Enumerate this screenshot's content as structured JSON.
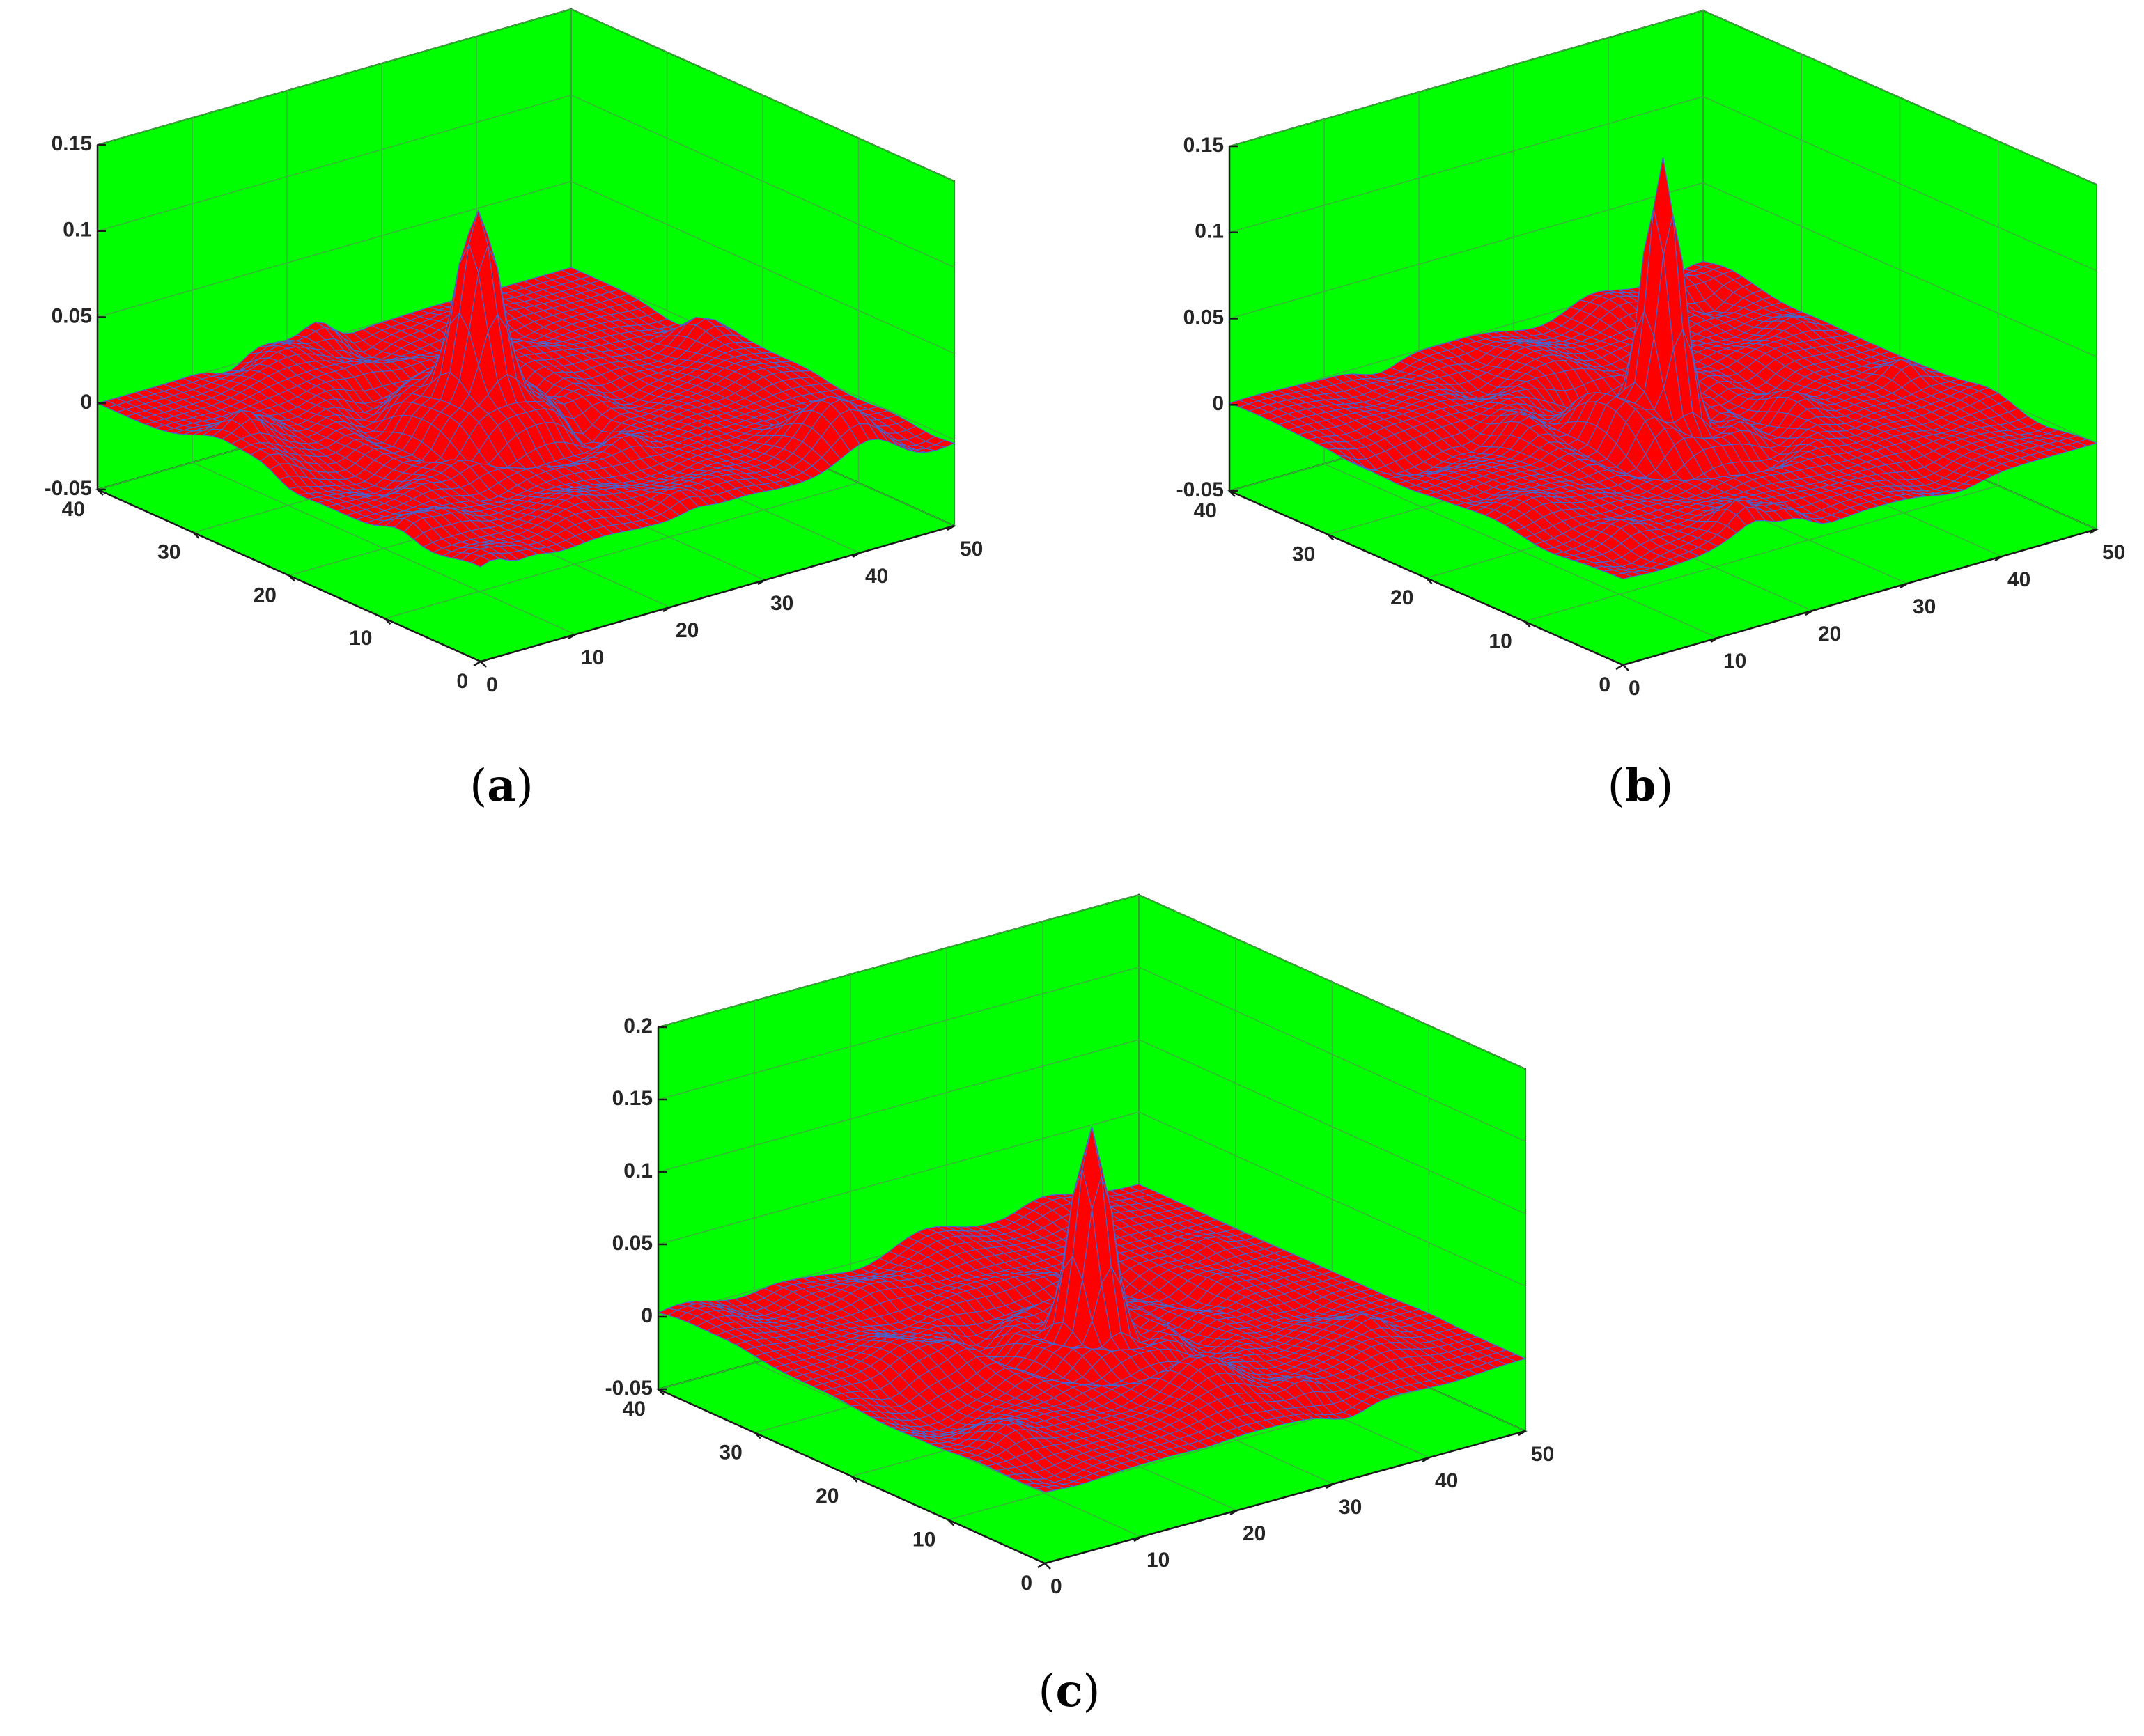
{
  "colors": {
    "pane": "#00ff00",
    "surface": "#ff0000",
    "wireframe": "#4a63c8",
    "axis": "#1a1a1a",
    "grid": "#39b339"
  },
  "chart_data": [
    {
      "type": "surface",
      "panel": "a",
      "caption": {
        "open": "(",
        "letter": "a",
        "close": ")"
      },
      "title": "",
      "xlabel": "",
      "ylabel": "",
      "zlabel": "",
      "xlim": [
        0,
        50
      ],
      "ylim": [
        0,
        40
      ],
      "zlim": [
        -0.05,
        0.15
      ],
      "xticks": [
        "0",
        "10",
        "20",
        "30",
        "40",
        "50"
      ],
      "yticks": [
        "0",
        "10",
        "20",
        "30",
        "40"
      ],
      "zticks": [
        "-0.05",
        "0",
        "0.05",
        "0.1",
        "0.15"
      ],
      "grid": true,
      "peak": {
        "x": 22,
        "y": 22,
        "z": 0.105,
        "width": 2.2
      },
      "noise_amplitude": 0.012,
      "seed": 11
    },
    {
      "type": "surface",
      "panel": "b",
      "caption": {
        "open": "(",
        "letter": "b",
        "close": ")"
      },
      "title": "",
      "xlabel": "",
      "ylabel": "",
      "zlabel": "",
      "xlim": [
        0,
        50
      ],
      "ylim": [
        0,
        40
      ],
      "zlim": [
        -0.05,
        0.15
      ],
      "xticks": [
        "0",
        "10",
        "20",
        "30",
        "40",
        "50"
      ],
      "yticks": [
        "0",
        "10",
        "20",
        "30",
        "40"
      ],
      "zticks": [
        "-0.05",
        "0",
        "0.05",
        "0.1",
        "0.15"
      ],
      "grid": true,
      "peak": {
        "x": 25,
        "y": 20,
        "z": 0.14,
        "width": 1.6
      },
      "noise_amplitude": 0.01,
      "seed": 23
    },
    {
      "type": "surface",
      "panel": "c",
      "caption": {
        "open": "(",
        "letter": "c",
        "close": ")"
      },
      "title": "",
      "xlabel": "",
      "ylabel": "",
      "zlabel": "",
      "xlim": [
        0,
        50
      ],
      "ylim": [
        0,
        40
      ],
      "zlim": [
        -0.05,
        0.2
      ],
      "xticks": [
        "0",
        "10",
        "20",
        "30",
        "40",
        "50"
      ],
      "yticks": [
        "0",
        "10",
        "20",
        "30",
        "40"
      ],
      "zticks": [
        "-0.05",
        "0",
        "0.05",
        "0.1",
        "0.15",
        "0.2"
      ],
      "grid": true,
      "peak": {
        "x": 25,
        "y": 20,
        "z": 0.14,
        "width": 1.7
      },
      "noise_amplitude": 0.01,
      "seed": 37
    }
  ]
}
